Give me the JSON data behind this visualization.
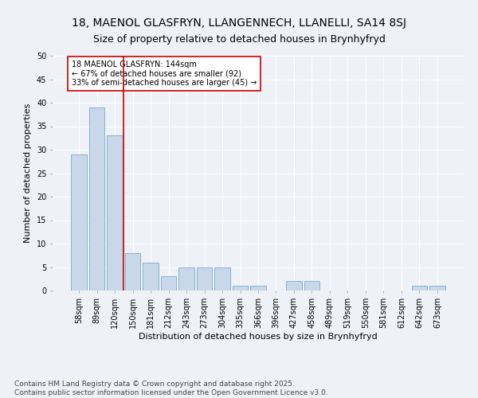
{
  "title1": "18, MAENOL GLASFRYN, LLANGENNECH, LLANELLI, SA14 8SJ",
  "title2": "Size of property relative to detached houses in Brynhyfryd",
  "xlabel": "Distribution of detached houses by size in Brynhyfryd",
  "ylabel": "Number of detached properties",
  "categories": [
    "58sqm",
    "89sqm",
    "120sqm",
    "150sqm",
    "181sqm",
    "212sqm",
    "243sqm",
    "273sqm",
    "304sqm",
    "335sqm",
    "366sqm",
    "396sqm",
    "427sqm",
    "458sqm",
    "489sqm",
    "519sqm",
    "550sqm",
    "581sqm",
    "612sqm",
    "642sqm",
    "673sqm"
  ],
  "values": [
    29,
    39,
    33,
    8,
    6,
    3,
    5,
    5,
    5,
    1,
    1,
    0,
    2,
    2,
    0,
    0,
    0,
    0,
    0,
    1,
    1
  ],
  "bar_color": "#c8d8ea",
  "bar_edge_color": "#7aaac8",
  "vline_color": "#cc0000",
  "annotation_text": "18 MAENOL GLASFRYN: 144sqm\n← 67% of detached houses are smaller (92)\n33% of semi-detached houses are larger (45) →",
  "annotation_box_color": "#ffffff",
  "annotation_box_edge": "#cc0000",
  "ylim": [
    0,
    50
  ],
  "yticks": [
    0,
    5,
    10,
    15,
    20,
    25,
    30,
    35,
    40,
    45,
    50
  ],
  "footer": "Contains HM Land Registry data © Crown copyright and database right 2025.\nContains public sector information licensed under the Open Government Licence v3.0.",
  "bg_color": "#eef2f7",
  "grid_color": "#ffffff",
  "title_fontsize": 10,
  "subtitle_fontsize": 9,
  "axis_fontsize": 8,
  "tick_fontsize": 7,
  "footer_fontsize": 6.5
}
